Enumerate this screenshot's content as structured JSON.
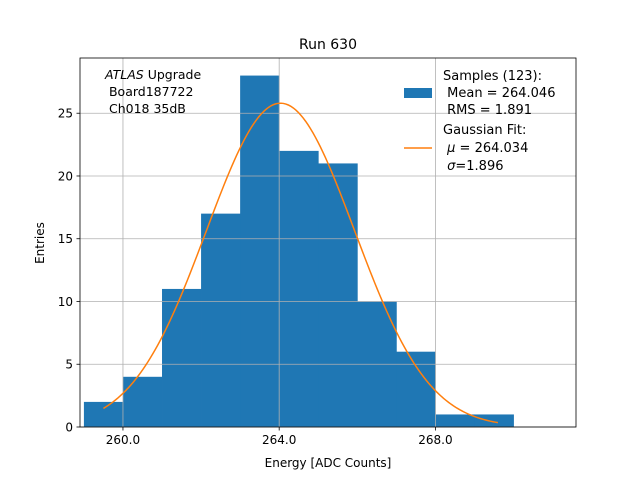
{
  "chart_data": {
    "type": "bar",
    "title": "Run 630",
    "xlabel": "Energy [ADC Counts]",
    "ylabel": "Entries",
    "xlim": [
      258.9,
      271.6
    ],
    "ylim": [
      0,
      29.4
    ],
    "grid": true,
    "x_ticks": [
      260,
      264,
      268
    ],
    "x_tick_labels": [
      "260.0",
      "264.0",
      "268.0"
    ],
    "y_ticks": [
      0,
      5,
      10,
      15,
      20,
      25
    ],
    "y_tick_labels": [
      "0",
      "5",
      "10",
      "15",
      "20",
      "25"
    ],
    "bins": [
      {
        "lo": 259,
        "hi": 260,
        "count": 2
      },
      {
        "lo": 260,
        "hi": 261,
        "count": 4
      },
      {
        "lo": 261,
        "hi": 262,
        "count": 11
      },
      {
        "lo": 262,
        "hi": 263,
        "count": 17
      },
      {
        "lo": 263,
        "hi": 264,
        "count": 28
      },
      {
        "lo": 264,
        "hi": 265,
        "count": 22
      },
      {
        "lo": 265,
        "hi": 266,
        "count": 21
      },
      {
        "lo": 266,
        "hi": 267,
        "count": 10
      },
      {
        "lo": 267,
        "hi": 268,
        "count": 6
      },
      {
        "lo": 268,
        "hi": 269,
        "count": 1
      },
      {
        "lo": 269,
        "hi": 270,
        "count": 1
      }
    ],
    "fit": {
      "name": "Gaussian Fit",
      "mu": 264.034,
      "sigma": 1.896,
      "amplitude": 25.8,
      "x_range": [
        259.5,
        269.6
      ]
    },
    "annotation": {
      "italic": "ATLAS",
      "rest": " Upgrade",
      "line2": " Board187722",
      "line3": " Ch018 35dB",
      "position": "top-left"
    },
    "legend": {
      "position": "top-right",
      "hist": {
        "line1": "Samples (123):",
        "line2": " Mean = 264.046",
        "line3": " RMS = 1.891"
      },
      "fit": {
        "line1": "Gaussian Fit:",
        "line2_symbol": "μ",
        "line2_rest": " = 264.034",
        "line3_symbol": "σ",
        "line3_rest": "=1.896"
      }
    },
    "colors": {
      "hist": "#1f77b4",
      "fit": "#ff7f0e",
      "grid": "#b0b0b0"
    }
  }
}
